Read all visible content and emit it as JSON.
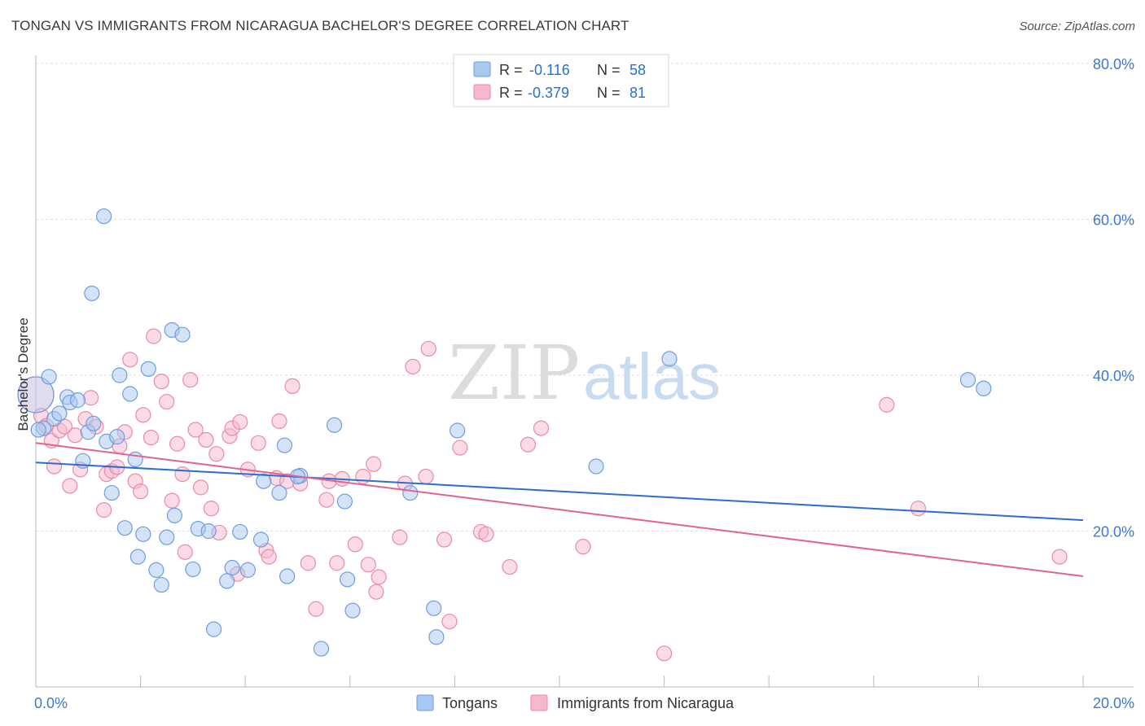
{
  "header": {
    "title": "TONGAN VS IMMIGRANTS FROM NICARAGUA BACHELOR'S DEGREE CORRELATION CHART",
    "source": "Source: ZipAtlas.com"
  },
  "watermark": {
    "zip": "ZIP",
    "atlas": "atlas"
  },
  "colors": {
    "tongans_fill": "#a9c8f0",
    "tongans_stroke": "#6d9ee0",
    "tongans_line": "#2a6fcf",
    "nicaragua_fill": "#f7b8cb",
    "nicaragua_stroke": "#ea8aa9",
    "nicaragua_line": "#e0648e",
    "axis_text": "#3e78cc",
    "grid": "#dddddd"
  },
  "legend": {
    "rows": [
      {
        "r_label": "R =",
        "r_value": "-0.116",
        "n_label": "N =",
        "n_value": "58"
      },
      {
        "r_label": "R =",
        "r_value": "-0.379",
        "n_label": "N =",
        "n_value": "81"
      }
    ],
    "bottom": [
      "Tongans",
      "Immigrants from Nicaragua"
    ]
  },
  "chart_data": {
    "type": "scatter",
    "title": "TONGAN VS IMMIGRANTS FROM NICARAGUA BACHELOR'S DEGREE CORRELATION CHART",
    "xlabel": "",
    "ylabel": "Bachelor's Degree",
    "xlim": [
      0,
      20
    ],
    "ylim": [
      0,
      80
    ],
    "x_tick_labels": [
      "0.0%",
      "20.0%"
    ],
    "y_ticks": [
      20,
      40,
      60,
      80
    ],
    "y_tick_labels": [
      "20.0%",
      "40.0%",
      "60.0%",
      "80.0%"
    ],
    "series": [
      {
        "name": "Tongans",
        "r": -0.116,
        "n": 58,
        "trend": {
          "x": [
            0,
            20
          ],
          "y": [
            28.8,
            21.4
          ]
        },
        "points": [
          [
            0.0,
            37.5
          ],
          [
            0.15,
            33.2
          ],
          [
            0.25,
            39.8
          ],
          [
            0.35,
            34.4
          ],
          [
            0.45,
            35.1
          ],
          [
            0.6,
            37.2
          ],
          [
            0.65,
            36.5
          ],
          [
            0.8,
            36.8
          ],
          [
            0.9,
            29.0
          ],
          [
            1.0,
            32.7
          ],
          [
            1.1,
            33.8
          ],
          [
            1.3,
            60.4
          ],
          [
            1.35,
            31.5
          ],
          [
            1.45,
            24.9
          ],
          [
            1.55,
            32.1
          ],
          [
            1.6,
            40.0
          ],
          [
            1.7,
            20.4
          ],
          [
            1.8,
            37.6
          ],
          [
            1.9,
            29.2
          ],
          [
            1.95,
            16.7
          ],
          [
            2.05,
            19.6
          ],
          [
            2.15,
            40.8
          ],
          [
            2.3,
            15.0
          ],
          [
            2.4,
            13.1
          ],
          [
            2.5,
            19.2
          ],
          [
            2.6,
            45.8
          ],
          [
            2.65,
            22.0
          ],
          [
            2.8,
            45.2
          ],
          [
            3.0,
            15.1
          ],
          [
            3.1,
            20.3
          ],
          [
            3.3,
            20.0
          ],
          [
            3.4,
            7.4
          ],
          [
            3.65,
            13.6
          ],
          [
            3.75,
            15.3
          ],
          [
            3.9,
            19.9
          ],
          [
            4.05,
            15.0
          ],
          [
            4.3,
            18.9
          ],
          [
            4.35,
            26.4
          ],
          [
            4.65,
            24.9
          ],
          [
            4.75,
            31.0
          ],
          [
            4.8,
            14.2
          ],
          [
            5.05,
            27.1
          ],
          [
            5.45,
            4.9
          ],
          [
            5.7,
            33.6
          ],
          [
            5.9,
            23.8
          ],
          [
            5.95,
            13.8
          ],
          [
            6.05,
            9.8
          ],
          [
            7.15,
            24.9
          ],
          [
            7.6,
            10.1
          ],
          [
            7.65,
            6.4
          ],
          [
            8.05,
            32.9
          ],
          [
            10.7,
            28.3
          ],
          [
            1.07,
            50.5
          ],
          [
            0.05,
            33.0
          ],
          [
            12.1,
            42.1
          ],
          [
            17.8,
            39.4
          ],
          [
            18.1,
            38.3
          ],
          [
            5.0,
            27.0
          ]
        ]
      },
      {
        "name": "Immigrants from Nicaragua",
        "r": -0.379,
        "n": 81,
        "trend": {
          "x": [
            0,
            20
          ],
          "y": [
            31.3,
            14.2
          ]
        },
        "points": [
          [
            0.0,
            37.5
          ],
          [
            0.1,
            34.8
          ],
          [
            0.2,
            33.5
          ],
          [
            0.3,
            31.6
          ],
          [
            0.45,
            32.9
          ],
          [
            0.55,
            33.4
          ],
          [
            0.65,
            25.8
          ],
          [
            0.75,
            32.3
          ],
          [
            0.85,
            27.9
          ],
          [
            0.95,
            34.4
          ],
          [
            1.05,
            37.1
          ],
          [
            1.15,
            33.4
          ],
          [
            1.3,
            22.7
          ],
          [
            1.35,
            27.3
          ],
          [
            1.45,
            27.7
          ],
          [
            1.55,
            28.2
          ],
          [
            1.6,
            30.9
          ],
          [
            1.7,
            32.7
          ],
          [
            1.8,
            42.0
          ],
          [
            1.9,
            26.4
          ],
          [
            2.0,
            25.1
          ],
          [
            2.05,
            34.9
          ],
          [
            2.2,
            32.0
          ],
          [
            2.25,
            45.0
          ],
          [
            2.4,
            39.2
          ],
          [
            2.5,
            36.6
          ],
          [
            2.6,
            23.9
          ],
          [
            2.7,
            31.2
          ],
          [
            2.8,
            27.3
          ],
          [
            2.85,
            17.3
          ],
          [
            2.95,
            39.4
          ],
          [
            3.05,
            33.0
          ],
          [
            3.15,
            25.6
          ],
          [
            3.25,
            31.7
          ],
          [
            3.35,
            22.9
          ],
          [
            3.45,
            29.9
          ],
          [
            3.5,
            19.8
          ],
          [
            3.7,
            32.2
          ],
          [
            3.75,
            33.2
          ],
          [
            3.85,
            14.5
          ],
          [
            3.9,
            34.0
          ],
          [
            4.05,
            27.9
          ],
          [
            4.25,
            31.3
          ],
          [
            4.4,
            17.5
          ],
          [
            4.45,
            16.7
          ],
          [
            4.6,
            26.8
          ],
          [
            4.65,
            34.1
          ],
          [
            4.8,
            26.4
          ],
          [
            4.9,
            38.6
          ],
          [
            5.05,
            26.1
          ],
          [
            5.2,
            15.9
          ],
          [
            5.35,
            10.0
          ],
          [
            5.55,
            24.0
          ],
          [
            5.6,
            26.4
          ],
          [
            5.75,
            15.9
          ],
          [
            5.85,
            26.7
          ],
          [
            6.1,
            18.3
          ],
          [
            6.25,
            27.0
          ],
          [
            6.35,
            15.7
          ],
          [
            6.45,
            28.6
          ],
          [
            6.5,
            12.2
          ],
          [
            6.55,
            14.1
          ],
          [
            6.95,
            19.2
          ],
          [
            7.05,
            26.1
          ],
          [
            7.2,
            41.1
          ],
          [
            7.45,
            27.0
          ],
          [
            7.5,
            43.4
          ],
          [
            7.8,
            18.9
          ],
          [
            7.9,
            8.4
          ],
          [
            8.1,
            30.7
          ],
          [
            8.5,
            19.9
          ],
          [
            8.6,
            19.6
          ],
          [
            9.05,
            15.4
          ],
          [
            9.4,
            31.1
          ],
          [
            9.65,
            33.2
          ],
          [
            10.45,
            18.0
          ],
          [
            12.0,
            4.3
          ],
          [
            16.25,
            36.2
          ],
          [
            16.85,
            22.9
          ],
          [
            19.55,
            16.7
          ],
          [
            0.35,
            28.3
          ]
        ]
      }
    ]
  }
}
